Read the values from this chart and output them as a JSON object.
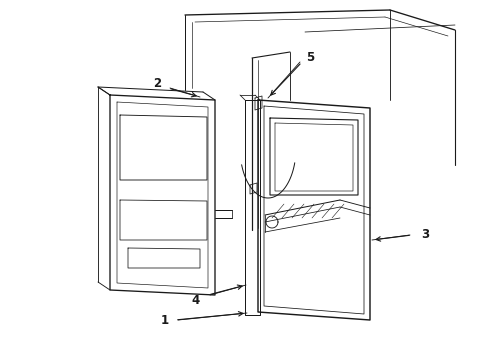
{
  "bg_color": "#ffffff",
  "line_color": "#1a1a1a",
  "label_color": "#000000",
  "fig_width": 4.9,
  "fig_height": 3.6,
  "dpi": 100,
  "lw": 0.8
}
